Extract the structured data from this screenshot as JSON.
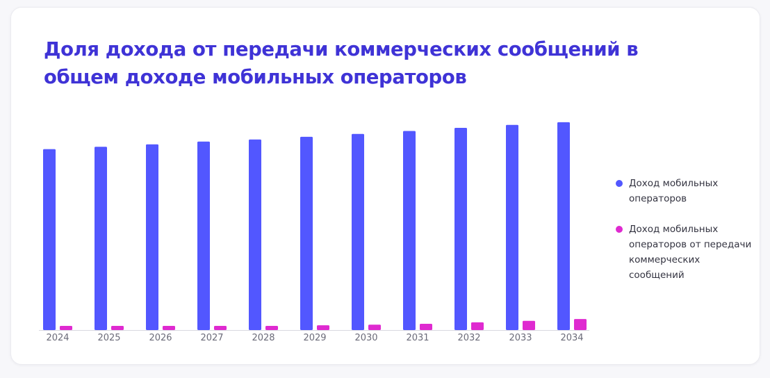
{
  "chart_data": {
    "type": "bar",
    "title": "Доля дохода от передачи коммерческих сообщений в общем доходе мобильных операторов",
    "xlabel": "",
    "ylabel": "",
    "categories": [
      "2024",
      "2025",
      "2026",
      "2027",
      "2028",
      "2029",
      "2030",
      "2031",
      "2032",
      "2033",
      "2034"
    ],
    "ylim": [
      0,
      100
    ],
    "grid": false,
    "legend_position": "right",
    "series": [
      {
        "name": "Доход мобильных операторов",
        "color": "#5257ff",
        "values": [
          86.8,
          87.9,
          89.1,
          90.4,
          91.4,
          92.7,
          94.1,
          95.5,
          97.0,
          98.4,
          99.7
        ]
      },
      {
        "name": "Доход мобильных операторов от передачи коммерческих сообщений",
        "color": "#df2ad0",
        "values": [
          2.0,
          2.0,
          2.0,
          2.0,
          2.0,
          2.3,
          2.6,
          3.0,
          3.7,
          4.4,
          5.3
        ]
      }
    ]
  }
}
